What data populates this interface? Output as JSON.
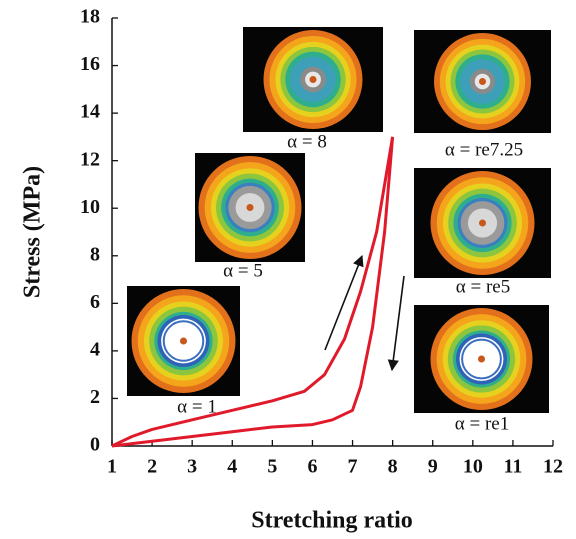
{
  "chart_data": {
    "type": "line",
    "x_label": "Stretching ratio",
    "y_label": "Stress (MPa)",
    "xlim": [
      1,
      12
    ],
    "ylim": [
      0,
      18
    ],
    "xticks": [
      1,
      2,
      3,
      4,
      5,
      6,
      7,
      8,
      9,
      10,
      11,
      12
    ],
    "yticks": [
      0,
      2,
      4,
      6,
      8,
      10,
      12,
      14,
      16,
      18
    ],
    "series": [
      {
        "color": "#e01a2b",
        "x": [
          1,
          1.5,
          2,
          3,
          4,
          5,
          5.8,
          6.3,
          6.8,
          7.2,
          7.6,
          7.9,
          8
        ],
        "values": [
          0,
          0.4,
          0.7,
          1.1,
          1.5,
          1.9,
          2.3,
          3,
          4.5,
          6.5,
          9,
          12,
          13
        ]
      },
      {
        "color": "#e01a2b",
        "x": [
          8,
          7.8,
          7.5,
          7.2,
          7,
          6.5,
          6,
          5,
          4,
          3,
          2,
          1.5,
          1
        ],
        "values": [
          13,
          9,
          5,
          2.5,
          1.5,
          1.1,
          0.9,
          0.8,
          0.6,
          0.4,
          0.2,
          0.1,
          0
        ]
      }
    ],
    "annotations": [
      "α = 1",
      "α = 5",
      "α = 8",
      "α = re7.25",
      "α = re5",
      "α = re1"
    ]
  }
}
